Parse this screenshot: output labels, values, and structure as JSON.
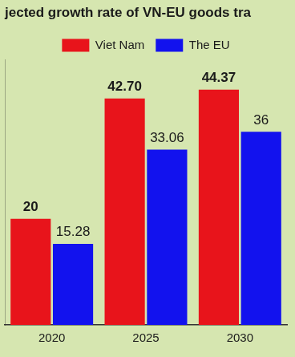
{
  "chart_data": {
    "type": "bar",
    "title": "jected growth rate of VN-EU goods tra",
    "categories": [
      "2020",
      "2025",
      "2030"
    ],
    "series": [
      {
        "name": "Viet Nam",
        "color": "#e8141b",
        "values": [
          20,
          42.7,
          44.37
        ],
        "value_labels": [
          "20",
          "42.70",
          "44.37"
        ]
      },
      {
        "name": "The EU",
        "color": "#1212ee",
        "values": [
          15.28,
          33.06,
          36.4
        ],
        "value_labels": [
          "15.28",
          "33.06",
          "36"
        ]
      }
    ],
    "ylim": [
      0,
      50
    ],
    "grid": false,
    "legend": "top",
    "data_labels": true,
    "tick_labels": "x"
  }
}
